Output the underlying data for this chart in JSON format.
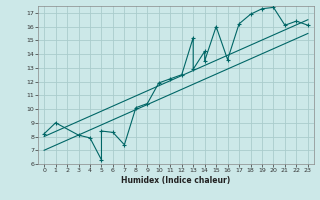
{
  "xlabel": "Humidex (Indice chaleur)",
  "bg_color": "#cce8e8",
  "grid_color": "#aacccc",
  "line_color": "#006666",
  "xlim": [
    -0.5,
    23.5
  ],
  "ylim": [
    6,
    17.5
  ],
  "xticks": [
    0,
    1,
    2,
    3,
    4,
    5,
    6,
    7,
    8,
    9,
    10,
    11,
    12,
    13,
    14,
    15,
    16,
    17,
    18,
    19,
    20,
    21,
    22,
    23
  ],
  "yticks": [
    6,
    7,
    8,
    9,
    10,
    11,
    12,
    13,
    14,
    15,
    16,
    17
  ],
  "data_x": [
    0,
    1,
    3,
    4,
    5,
    5,
    6,
    7,
    8,
    9,
    10,
    11,
    12,
    13,
    13,
    14,
    14,
    15,
    16,
    17,
    18,
    19,
    20,
    21,
    22,
    23
  ],
  "data_y": [
    8.2,
    9.0,
    8.1,
    7.9,
    6.3,
    8.4,
    8.3,
    7.4,
    10.1,
    10.4,
    11.9,
    12.2,
    12.5,
    15.2,
    12.9,
    14.2,
    13.5,
    16.0,
    13.6,
    16.2,
    16.9,
    17.3,
    17.4,
    16.1,
    16.4,
    16.1
  ],
  "line1_x": [
    0,
    23
  ],
  "line1_y": [
    8.0,
    16.5
  ],
  "line2_x": [
    0,
    23
  ],
  "line2_y": [
    7.0,
    15.5
  ]
}
